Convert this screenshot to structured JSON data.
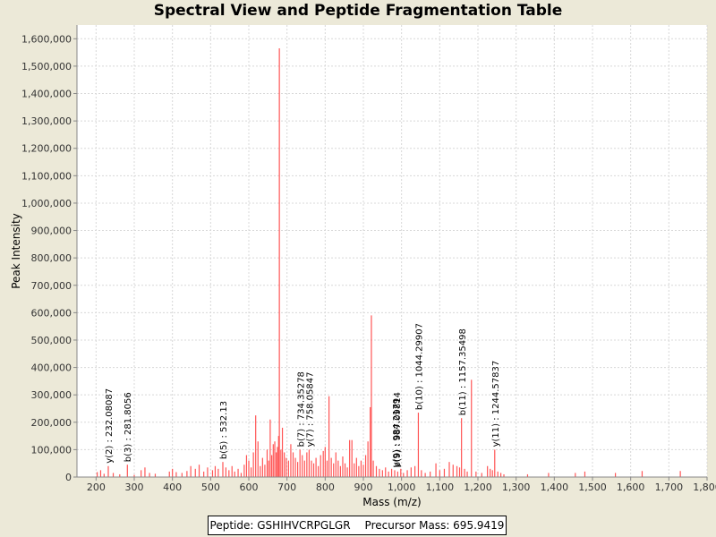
{
  "chart_data": {
    "type": "bar",
    "title": "Spectral View and Peptide Fragmentation Table",
    "xlabel": "Mass (m/z)",
    "ylabel": "Peak Intensity",
    "xlim": [
      150,
      1800
    ],
    "ylim": [
      0,
      1650000
    ],
    "xticks": [
      200,
      300,
      400,
      500,
      600,
      700,
      800,
      900,
      1000,
      1100,
      1200,
      1300,
      1400,
      1500,
      1600,
      1700,
      1800
    ],
    "xtick_labels": [
      "200",
      "300",
      "400",
      "500",
      "600",
      "700",
      "800",
      "900",
      "1,000",
      "1,100",
      "1,200",
      "1,300",
      "1,400",
      "1,500",
      "1,600",
      "1,700",
      "1,800"
    ],
    "yticks": [
      0,
      100000,
      200000,
      300000,
      400000,
      500000,
      600000,
      700000,
      800000,
      900000,
      1000000,
      1100000,
      1200000,
      1300000,
      1400000,
      1500000,
      1600000
    ],
    "ytick_labels": [
      "0",
      "100,000",
      "200,000",
      "300,000",
      "400,000",
      "500,000",
      "600,000",
      "700,000",
      "800,000",
      "900,000",
      "1,000,000",
      "1,100,000",
      "1,200,000",
      "1,300,000",
      "1,400,000",
      "1,500,000",
      "1,600,000"
    ],
    "grid": true,
    "peak_color": "#ff5555",
    "peaks": [
      {
        "mz": 203,
        "intensity": 18000
      },
      {
        "mz": 212,
        "intensity": 25000
      },
      {
        "mz": 221,
        "intensity": 12000
      },
      {
        "mz": 232,
        "intensity": 40000
      },
      {
        "mz": 245,
        "intensity": 15000
      },
      {
        "mz": 262,
        "intensity": 10000
      },
      {
        "mz": 282,
        "intensity": 45000
      },
      {
        "mz": 300,
        "intensity": 8000
      },
      {
        "mz": 318,
        "intensity": 25000
      },
      {
        "mz": 328,
        "intensity": 35000
      },
      {
        "mz": 340,
        "intensity": 15000
      },
      {
        "mz": 355,
        "intensity": 12000
      },
      {
        "mz": 392,
        "intensity": 20000
      },
      {
        "mz": 400,
        "intensity": 30000
      },
      {
        "mz": 410,
        "intensity": 18000
      },
      {
        "mz": 425,
        "intensity": 15000
      },
      {
        "mz": 438,
        "intensity": 22000
      },
      {
        "mz": 448,
        "intensity": 40000
      },
      {
        "mz": 460,
        "intensity": 30000
      },
      {
        "mz": 470,
        "intensity": 45000
      },
      {
        "mz": 482,
        "intensity": 20000
      },
      {
        "mz": 492,
        "intensity": 35000
      },
      {
        "mz": 505,
        "intensity": 25000
      },
      {
        "mz": 512,
        "intensity": 40000
      },
      {
        "mz": 520,
        "intensity": 30000
      },
      {
        "mz": 532,
        "intensity": 55000
      },
      {
        "mz": 540,
        "intensity": 35000
      },
      {
        "mz": 548,
        "intensity": 25000
      },
      {
        "mz": 556,
        "intensity": 40000
      },
      {
        "mz": 563,
        "intensity": 20000
      },
      {
        "mz": 572,
        "intensity": 30000
      },
      {
        "mz": 580,
        "intensity": 15000
      },
      {
        "mz": 588,
        "intensity": 45000
      },
      {
        "mz": 594,
        "intensity": 80000
      },
      {
        "mz": 600,
        "intensity": 60000
      },
      {
        "mz": 606,
        "intensity": 35000
      },
      {
        "mz": 612,
        "intensity": 90000
      },
      {
        "mz": 618,
        "intensity": 225000
      },
      {
        "mz": 624,
        "intensity": 130000
      },
      {
        "mz": 630,
        "intensity": 40000
      },
      {
        "mz": 636,
        "intensity": 70000
      },
      {
        "mz": 642,
        "intensity": 45000
      },
      {
        "mz": 648,
        "intensity": 100000
      },
      {
        "mz": 652,
        "intensity": 60000
      },
      {
        "mz": 656,
        "intensity": 210000
      },
      {
        "mz": 660,
        "intensity": 80000
      },
      {
        "mz": 664,
        "intensity": 120000
      },
      {
        "mz": 668,
        "intensity": 130000
      },
      {
        "mz": 672,
        "intensity": 90000
      },
      {
        "mz": 675,
        "intensity": 110000
      },
      {
        "mz": 678,
        "intensity": 150000
      },
      {
        "mz": 680,
        "intensity": 1565000
      },
      {
        "mz": 684,
        "intensity": 100000
      },
      {
        "mz": 688,
        "intensity": 180000
      },
      {
        "mz": 693,
        "intensity": 90000
      },
      {
        "mz": 698,
        "intensity": 70000
      },
      {
        "mz": 704,
        "intensity": 60000
      },
      {
        "mz": 710,
        "intensity": 120000
      },
      {
        "mz": 716,
        "intensity": 90000
      },
      {
        "mz": 722,
        "intensity": 70000
      },
      {
        "mz": 728,
        "intensity": 55000
      },
      {
        "mz": 734,
        "intensity": 100000
      },
      {
        "mz": 740,
        "intensity": 80000
      },
      {
        "mz": 746,
        "intensity": 60000
      },
      {
        "mz": 752,
        "intensity": 90000
      },
      {
        "mz": 758,
        "intensity": 100000
      },
      {
        "mz": 764,
        "intensity": 60000
      },
      {
        "mz": 770,
        "intensity": 50000
      },
      {
        "mz": 776,
        "intensity": 70000
      },
      {
        "mz": 782,
        "intensity": 40000
      },
      {
        "mz": 788,
        "intensity": 80000
      },
      {
        "mz": 795,
        "intensity": 95000
      },
      {
        "mz": 800,
        "intensity": 110000
      },
      {
        "mz": 805,
        "intensity": 60000
      },
      {
        "mz": 810,
        "intensity": 295000
      },
      {
        "mz": 816,
        "intensity": 70000
      },
      {
        "mz": 822,
        "intensity": 50000
      },
      {
        "mz": 828,
        "intensity": 90000
      },
      {
        "mz": 834,
        "intensity": 60000
      },
      {
        "mz": 840,
        "intensity": 40000
      },
      {
        "mz": 846,
        "intensity": 75000
      },
      {
        "mz": 852,
        "intensity": 50000
      },
      {
        "mz": 858,
        "intensity": 35000
      },
      {
        "mz": 864,
        "intensity": 135000
      },
      {
        "mz": 870,
        "intensity": 135000
      },
      {
        "mz": 876,
        "intensity": 50000
      },
      {
        "mz": 882,
        "intensity": 70000
      },
      {
        "mz": 888,
        "intensity": 40000
      },
      {
        "mz": 894,
        "intensity": 60000
      },
      {
        "mz": 900,
        "intensity": 45000
      },
      {
        "mz": 906,
        "intensity": 80000
      },
      {
        "mz": 912,
        "intensity": 130000
      },
      {
        "mz": 918,
        "intensity": 255000
      },
      {
        "mz": 921,
        "intensity": 590000
      },
      {
        "mz": 926,
        "intensity": 60000
      },
      {
        "mz": 934,
        "intensity": 40000
      },
      {
        "mz": 942,
        "intensity": 30000
      },
      {
        "mz": 950,
        "intensity": 25000
      },
      {
        "mz": 958,
        "intensity": 35000
      },
      {
        "mz": 966,
        "intensity": 20000
      },
      {
        "mz": 974,
        "intensity": 30000
      },
      {
        "mz": 982,
        "intensity": 25000
      },
      {
        "mz": 990,
        "intensity": 20000
      },
      {
        "mz": 998,
        "intensity": 30000
      },
      {
        "mz": 1005,
        "intensity": 15000
      },
      {
        "mz": 1015,
        "intensity": 25000
      },
      {
        "mz": 1025,
        "intensity": 35000
      },
      {
        "mz": 1035,
        "intensity": 40000
      },
      {
        "mz": 1044,
        "intensity": 235000
      },
      {
        "mz": 1052,
        "intensity": 25000
      },
      {
        "mz": 1062,
        "intensity": 15000
      },
      {
        "mz": 1075,
        "intensity": 20000
      },
      {
        "mz": 1090,
        "intensity": 50000
      },
      {
        "mz": 1100,
        "intensity": 25000
      },
      {
        "mz": 1112,
        "intensity": 30000
      },
      {
        "mz": 1125,
        "intensity": 55000
      },
      {
        "mz": 1135,
        "intensity": 45000
      },
      {
        "mz": 1145,
        "intensity": 40000
      },
      {
        "mz": 1152,
        "intensity": 35000
      },
      {
        "mz": 1157,
        "intensity": 215000
      },
      {
        "mz": 1165,
        "intensity": 30000
      },
      {
        "mz": 1172,
        "intensity": 20000
      },
      {
        "mz": 1183,
        "intensity": 355000
      },
      {
        "mz": 1195,
        "intensity": 20000
      },
      {
        "mz": 1210,
        "intensity": 15000
      },
      {
        "mz": 1225,
        "intensity": 40000
      },
      {
        "mz": 1232,
        "intensity": 30000
      },
      {
        "mz": 1238,
        "intensity": 25000
      },
      {
        "mz": 1244,
        "intensity": 100000
      },
      {
        "mz": 1252,
        "intensity": 20000
      },
      {
        "mz": 1260,
        "intensity": 15000
      },
      {
        "mz": 1268,
        "intensity": 10000
      },
      {
        "mz": 1330,
        "intensity": 10000
      },
      {
        "mz": 1385,
        "intensity": 15000
      },
      {
        "mz": 1455,
        "intensity": 15000
      },
      {
        "mz": 1480,
        "intensity": 20000
      },
      {
        "mz": 1560,
        "intensity": 15000
      },
      {
        "mz": 1630,
        "intensity": 22000
      },
      {
        "mz": 1730,
        "intensity": 22000
      }
    ],
    "annotations": [
      {
        "label": "y(2) : 232.08087",
        "mz": 232.08,
        "intensity": 40000
      },
      {
        "label": "b(3) : 281.8056",
        "mz": 281.81,
        "intensity": 45000
      },
      {
        "label": "b(5) : 532.13",
        "mz": 532.13,
        "intensity": 55000
      },
      {
        "label": "b(7) : 734.35278",
        "mz": 734.35,
        "intensity": 100000
      },
      {
        "label": "y(7) : 758.05847",
        "mz": 758.06,
        "intensity": 100000
      },
      {
        "label": "y(9) : 984.2179",
        "mz": 984.22,
        "intensity": 25000
      },
      {
        "label": "b(9) : 987.09814",
        "mz": 987.1,
        "intensity": 25000
      },
      {
        "label": "b(10) : 1044.29907",
        "mz": 1044.3,
        "intensity": 235000
      },
      {
        "label": "b(11) : 1157.35498",
        "mz": 1157.35,
        "intensity": 215000
      },
      {
        "label": "y(11) : 1244.57837",
        "mz": 1244.58,
        "intensity": 100000
      }
    ]
  },
  "legend": {
    "peptide": "Peptide: GSHIHVCRPGLGR",
    "precursor": "Precursor Mass: 695.9419"
  }
}
